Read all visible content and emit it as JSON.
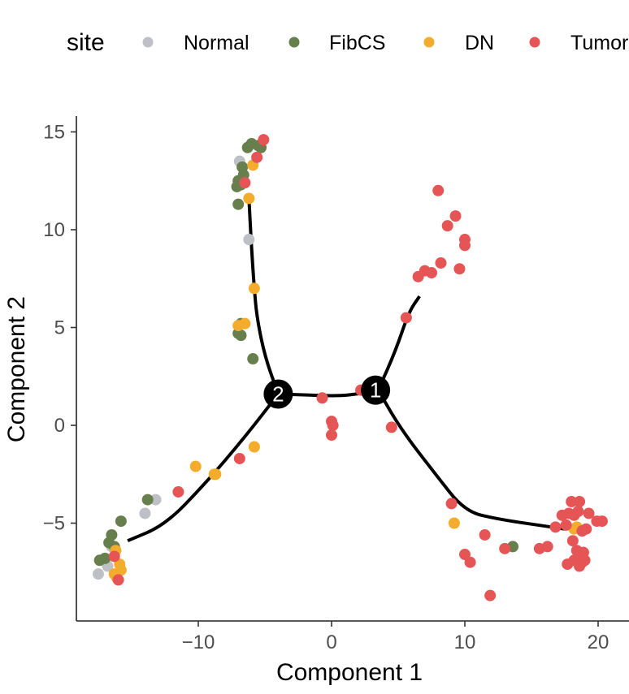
{
  "chart_data": {
    "type": "scatter",
    "title": "",
    "xlabel": "Component 1",
    "ylabel": "Component 2",
    "xlim": [
      -19.5,
      22.5
    ],
    "ylim": [
      -9.9,
      15.8
    ],
    "xticks": [
      -10,
      0,
      10,
      20
    ],
    "xtick_labels": [
      "−10",
      "0",
      "10",
      "20"
    ],
    "yticks": [
      -5,
      0,
      5,
      10,
      15
    ],
    "ytick_labels": [
      "−5",
      "0",
      "5",
      "10",
      "15"
    ],
    "grid": false,
    "legend": {
      "title": "site",
      "placement": "top",
      "entries": [
        {
          "name": "Normal",
          "color": "#bdc1c6"
        },
        {
          "name": "FibCS",
          "color": "#667f4c"
        },
        {
          "name": "DN",
          "color": "#f3ac2c"
        },
        {
          "name": "Tumor",
          "color": "#e65556"
        }
      ]
    },
    "series": [
      {
        "name": "Normal",
        "color": "#bdc1c6",
        "points": [
          [
            -6.9,
            13.5
          ],
          [
            -6.2,
            9.5
          ],
          [
            -13.2,
            -3.8
          ],
          [
            -14.0,
            -4.5
          ],
          [
            -16.5,
            -6.2
          ],
          [
            -16.8,
            -7.2
          ],
          [
            -17.5,
            -7.6
          ],
          [
            -16.2,
            -6.4
          ]
        ]
      },
      {
        "name": "FibCS",
        "color": "#667f4c",
        "points": [
          [
            -6.0,
            14.4
          ],
          [
            -5.5,
            14.3
          ],
          [
            -6.3,
            14.2
          ],
          [
            -5.3,
            14.2
          ],
          [
            -6.7,
            13.2
          ],
          [
            -6.6,
            12.8
          ],
          [
            -7.0,
            12.5
          ],
          [
            -6.8,
            12.3
          ],
          [
            -7.1,
            12.2
          ],
          [
            -7.0,
            11.3
          ],
          [
            -6.8,
            5.2
          ],
          [
            -7.0,
            4.7
          ],
          [
            -6.8,
            4.6
          ],
          [
            -5.9,
            3.4
          ],
          [
            -13.8,
            -3.8
          ],
          [
            -15.8,
            -4.9
          ],
          [
            -16.5,
            -5.6
          ],
          [
            -16.7,
            -6.0
          ],
          [
            -16.3,
            -6.2
          ],
          [
            -17.0,
            -6.8
          ],
          [
            -17.4,
            -6.9
          ],
          [
            13.6,
            -6.2
          ]
        ]
      },
      {
        "name": "DN",
        "color": "#f3ac2c",
        "points": [
          [
            -5.9,
            13.3
          ],
          [
            -6.2,
            11.6
          ],
          [
            -5.8,
            7.0
          ],
          [
            -6.5,
            5.2
          ],
          [
            -7.0,
            5.1
          ],
          [
            -5.8,
            -1.1
          ],
          [
            -10.2,
            -2.1
          ],
          [
            -8.7,
            -2.5
          ],
          [
            -8.8,
            -2.5
          ],
          [
            -16.2,
            -6.4
          ],
          [
            -15.9,
            -7.1
          ],
          [
            -15.8,
            -7.4
          ],
          [
            -16.3,
            -7.6
          ],
          [
            -16.1,
            -7.8
          ],
          [
            9.2,
            -5.0
          ],
          [
            18.2,
            -5.3
          ],
          [
            18.4,
            -5.2
          ]
        ]
      },
      {
        "name": "Tumor",
        "color": "#e65556",
        "points": [
          [
            -5.1,
            14.6
          ],
          [
            -5.6,
            13.7
          ],
          [
            -6.5,
            12.4
          ],
          [
            -0.7,
            1.4
          ],
          [
            2.2,
            1.8
          ],
          [
            0.0,
            0.2
          ],
          [
            0.1,
            0.0
          ],
          [
            0.0,
            -0.5
          ],
          [
            4.5,
            -0.1
          ],
          [
            5.6,
            5.5
          ],
          [
            6.5,
            7.6
          ],
          [
            7.0,
            7.9
          ],
          [
            7.5,
            7.8
          ],
          [
            8.2,
            8.3
          ],
          [
            9.6,
            8.0
          ],
          [
            8.0,
            12.0
          ],
          [
            8.7,
            10.2
          ],
          [
            9.3,
            10.7
          ],
          [
            10.0,
            9.5
          ],
          [
            10.0,
            9.2
          ],
          [
            -6.9,
            -1.7
          ],
          [
            -11.5,
            -3.4
          ],
          [
            -16.3,
            -6.7
          ],
          [
            -16.0,
            -7.9
          ],
          [
            9.0,
            -4.0
          ],
          [
            11.5,
            -5.6
          ],
          [
            10.0,
            -6.6
          ],
          [
            10.4,
            -7.0
          ],
          [
            13.0,
            -6.3
          ],
          [
            15.6,
            -6.3
          ],
          [
            16.2,
            -6.2
          ],
          [
            11.9,
            -8.7
          ],
          [
            16.8,
            -5.2
          ],
          [
            17.6,
            -5.1
          ],
          [
            17.3,
            -4.6
          ],
          [
            17.8,
            -4.5
          ],
          [
            18.2,
            -4.6
          ],
          [
            18.5,
            -4.4
          ],
          [
            18.0,
            -3.9
          ],
          [
            18.6,
            -3.9
          ],
          [
            19.3,
            -4.5
          ],
          [
            19.9,
            -4.9
          ],
          [
            20.3,
            -4.9
          ],
          [
            18.8,
            -5.4
          ],
          [
            19.1,
            -5.3
          ],
          [
            18.1,
            -5.9
          ],
          [
            18.4,
            -6.4
          ],
          [
            18.7,
            -6.7
          ],
          [
            18.2,
            -6.9
          ],
          [
            18.8,
            -7.0
          ],
          [
            17.7,
            -7.1
          ],
          [
            18.9,
            -6.5
          ],
          [
            18.6,
            -7.2
          ],
          [
            19.0,
            -6.9
          ]
        ]
      }
    ],
    "trajectory": [
      {
        "name": "branch-top",
        "points": [
          [
            -6.2,
            11.6
          ],
          [
            -6.0,
            9.0
          ],
          [
            -5.8,
            7.0
          ],
          [
            -5.6,
            5.5
          ],
          [
            -5.0,
            3.5
          ],
          [
            -4.0,
            1.6
          ]
        ]
      },
      {
        "name": "branch-left",
        "points": [
          [
            -4.0,
            1.6
          ],
          [
            -6.5,
            -0.6
          ],
          [
            -9.5,
            -3.0
          ],
          [
            -12.5,
            -5.1
          ],
          [
            -15.3,
            -5.9
          ]
        ]
      },
      {
        "name": "branch-middle",
        "points": [
          [
            -4.0,
            1.6
          ],
          [
            -2.0,
            1.55
          ],
          [
            0.5,
            1.5
          ],
          [
            2.0,
            1.6
          ],
          [
            3.5,
            1.8
          ]
        ]
      },
      {
        "name": "branch-upper-right",
        "points": [
          [
            3.5,
            1.8
          ],
          [
            4.8,
            3.8
          ],
          [
            5.8,
            5.8
          ],
          [
            6.6,
            6.6
          ]
        ]
      },
      {
        "name": "branch-lower-right",
        "points": [
          [
            3.5,
            1.8
          ],
          [
            5.2,
            -0.2
          ],
          [
            7.8,
            -2.5
          ],
          [
            10.0,
            -4.4
          ],
          [
            12.5,
            -4.8
          ],
          [
            15.5,
            -5.1
          ],
          [
            17.5,
            -5.3
          ]
        ]
      }
    ],
    "branch_nodes": [
      {
        "label": "2",
        "x": -4.0,
        "y": 1.6
      },
      {
        "label": "1",
        "x": 3.3,
        "y": 1.8
      }
    ]
  }
}
